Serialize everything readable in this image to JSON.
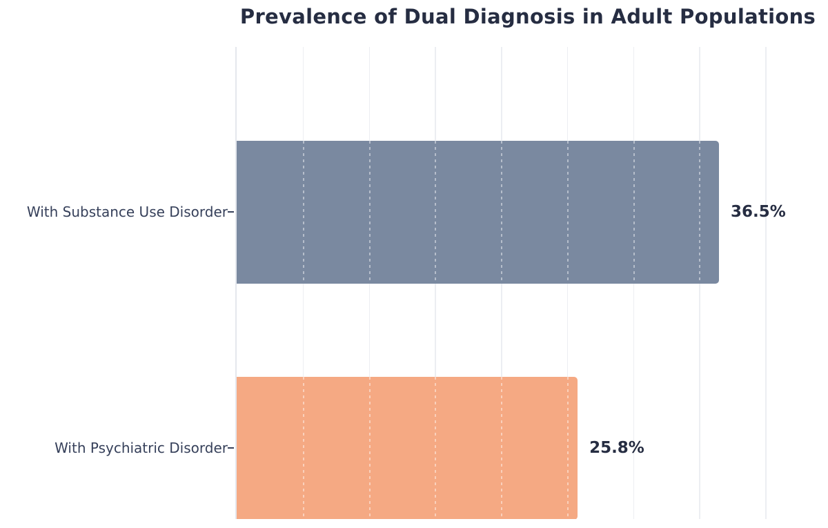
{
  "chart_data": {
    "type": "bar",
    "orientation": "horizontal",
    "title": "Prevalence of Dual Diagnosis in Adult Populations",
    "categories": [
      "With Substance Use Disorder",
      "With Psychiatric Disorder"
    ],
    "values": [
      36.5,
      25.8
    ],
    "value_labels": [
      "36.5%",
      "25.8%"
    ],
    "bar_colors": [
      "#7A89A0",
      "#F5A983"
    ],
    "xlabel": "",
    "ylabel": "",
    "xlim": [
      0,
      45
    ],
    "grid_step": 5,
    "grid": "vertical solid light lines every 5%, rendered as white dashed lines over bars",
    "x_tick_labels_visible": false,
    "legend": "none",
    "colors": {
      "background": "#ffffff",
      "title_text": "#262d42",
      "value_text": "#262d42",
      "label_text": "#36405a",
      "gridline": "#eceef2",
      "axis_line": "#e4e7ed"
    }
  }
}
